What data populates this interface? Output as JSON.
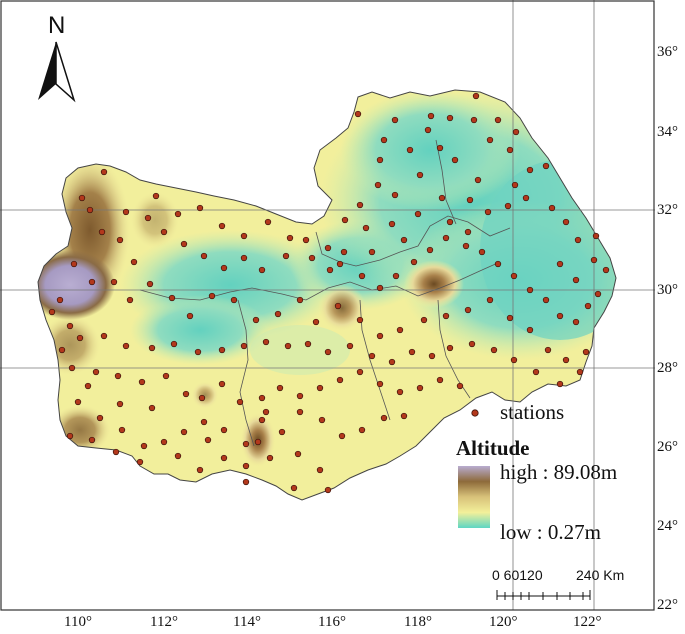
{
  "north_arrow": {
    "letter": "N"
  },
  "latitude_labels": [
    "36°",
    "34°",
    "32°",
    "30°",
    "28°",
    "26°",
    "24°",
    "22°"
  ],
  "longitude_labels": [
    "110°",
    "112°",
    "114°",
    "116°",
    "118°",
    "120°",
    "122°"
  ],
  "legend": {
    "stations_label": "stations",
    "title": "Altitude",
    "high_label": "high : 89.08m",
    "low_label": "low : 0.27m",
    "colors": {
      "high": "#a99fc4",
      "mid_high": "#8b6a3a",
      "mid": "#f2ef9a",
      "low": "#5ed6c4"
    }
  },
  "scale_bar": {
    "ticks": "0 60120",
    "end_label": "240 Km"
  },
  "colors": {
    "station_fill": "#b3381c",
    "station_stroke": "#3b120a",
    "grid": "#777777",
    "boundary": "#555555"
  }
}
